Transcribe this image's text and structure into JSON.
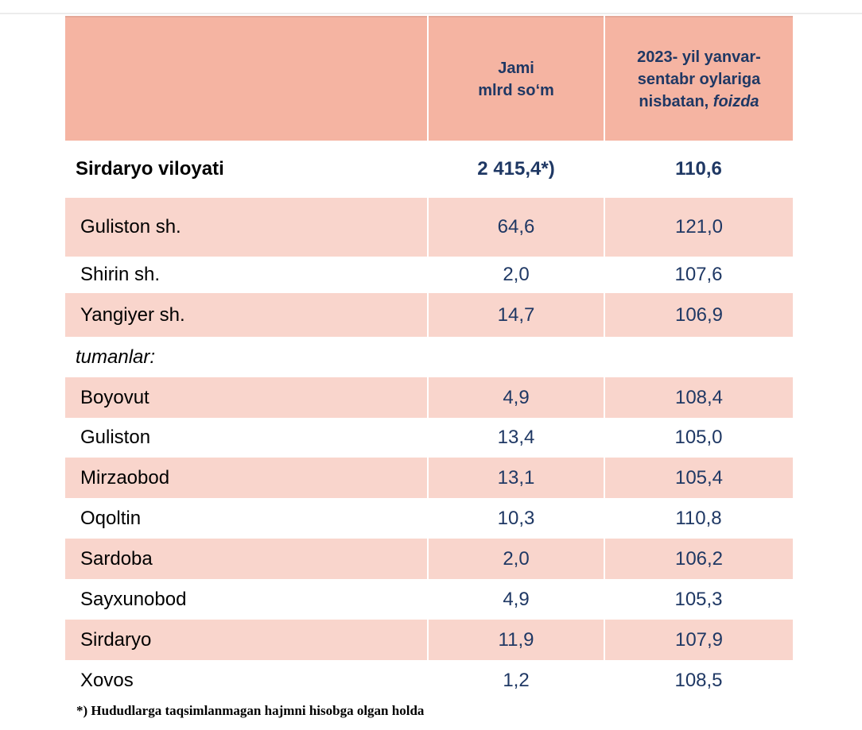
{
  "header": {
    "col_name": "",
    "col_total_line1": "Jami",
    "col_total_line2": "mlrd so‘m",
    "col_pct_line1": "2023- yil yanvar-",
    "col_pct_line2": "sentabr oylariga",
    "col_pct_line3": "nisbatan,",
    "col_pct_italic": "foizda"
  },
  "region": {
    "name": "Sirdaryo viloyati",
    "total": "2 415,4*)",
    "percent": "110,6"
  },
  "cities": [
    {
      "name": "Guliston  sh.",
      "total": "64,6",
      "percent": "121,0"
    },
    {
      "name": "Shirin sh.",
      "total": "2,0",
      "percent": "107,6"
    },
    {
      "name": "Yangiyer sh.",
      "total": "14,7",
      "percent": "106,9"
    }
  ],
  "districts_label": "tumanlar:",
  "districts": [
    {
      "name": "Boyovut",
      "total": "4,9",
      "percent": "108,4"
    },
    {
      "name": "Guliston",
      "total": "13,4",
      "percent": "105,0"
    },
    {
      "name": "Mirzaobod",
      "total": "13,1",
      "percent": "105,4"
    },
    {
      "name": "Oqoltin",
      "total": "10,3",
      "percent": "110,8"
    },
    {
      "name": "Sardoba",
      "total": "2,0",
      "percent": "106,2"
    },
    {
      "name": "Sayxunobod",
      "total": "4,9",
      "percent": "105,3"
    },
    {
      "name": "Sirdaryo",
      "total": "11,9",
      "percent": "107,9"
    },
    {
      "name": "Xovos",
      "total": "1,2",
      "percent": "108,5"
    }
  ],
  "footnote": "*) Hududlarga taqsimlanmagan hajmni hisobga olgan holda",
  "colors": {
    "header_bg": "#f5b4a2",
    "shaded_row_bg": "#f9d5cc",
    "number_text": "#1f3864"
  }
}
